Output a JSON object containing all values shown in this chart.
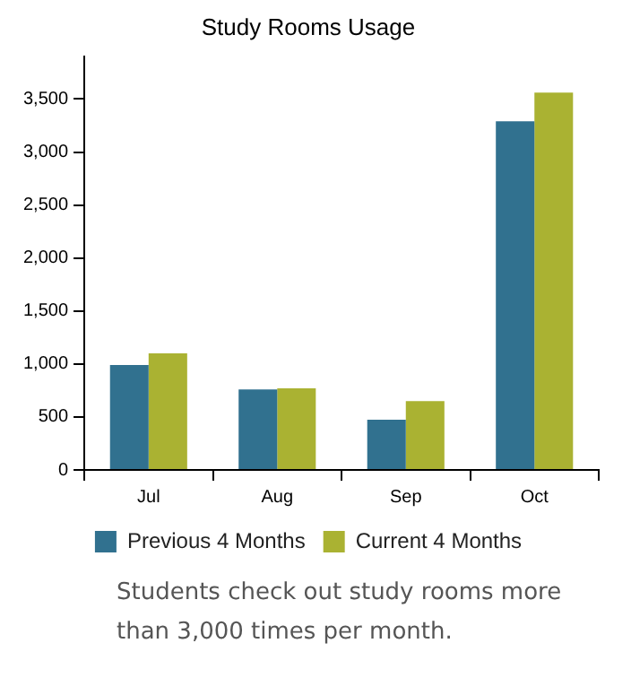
{
  "chart_data": {
    "type": "bar",
    "title": "Study Rooms Usage",
    "categories": [
      "Jul",
      "Aug",
      "Sep",
      "Oct"
    ],
    "series": [
      {
        "name": "Previous 4 Months",
        "color": "#31718f",
        "values": [
          990,
          760,
          475,
          3290
        ]
      },
      {
        "name": "Current 4 Months",
        "color": "#aab232",
        "values": [
          1100,
          770,
          650,
          3560
        ]
      }
    ],
    "ylim": [
      0,
      3900
    ],
    "yticks": [
      {
        "value": 0,
        "label": "0"
      },
      {
        "value": 500,
        "label": "500"
      },
      {
        "value": 1000,
        "label": "1,000"
      },
      {
        "value": 1500,
        "label": "1,500"
      },
      {
        "value": 2000,
        "label": "2,000"
      },
      {
        "value": 2500,
        "label": "2,500"
      },
      {
        "value": 3000,
        "label": "3,000"
      },
      {
        "value": 3500,
        "label": "3,500"
      }
    ],
    "grid": false,
    "legend": "bottom",
    "annotations": [
      "Students check out study rooms more than 3,000 times per month."
    ]
  }
}
